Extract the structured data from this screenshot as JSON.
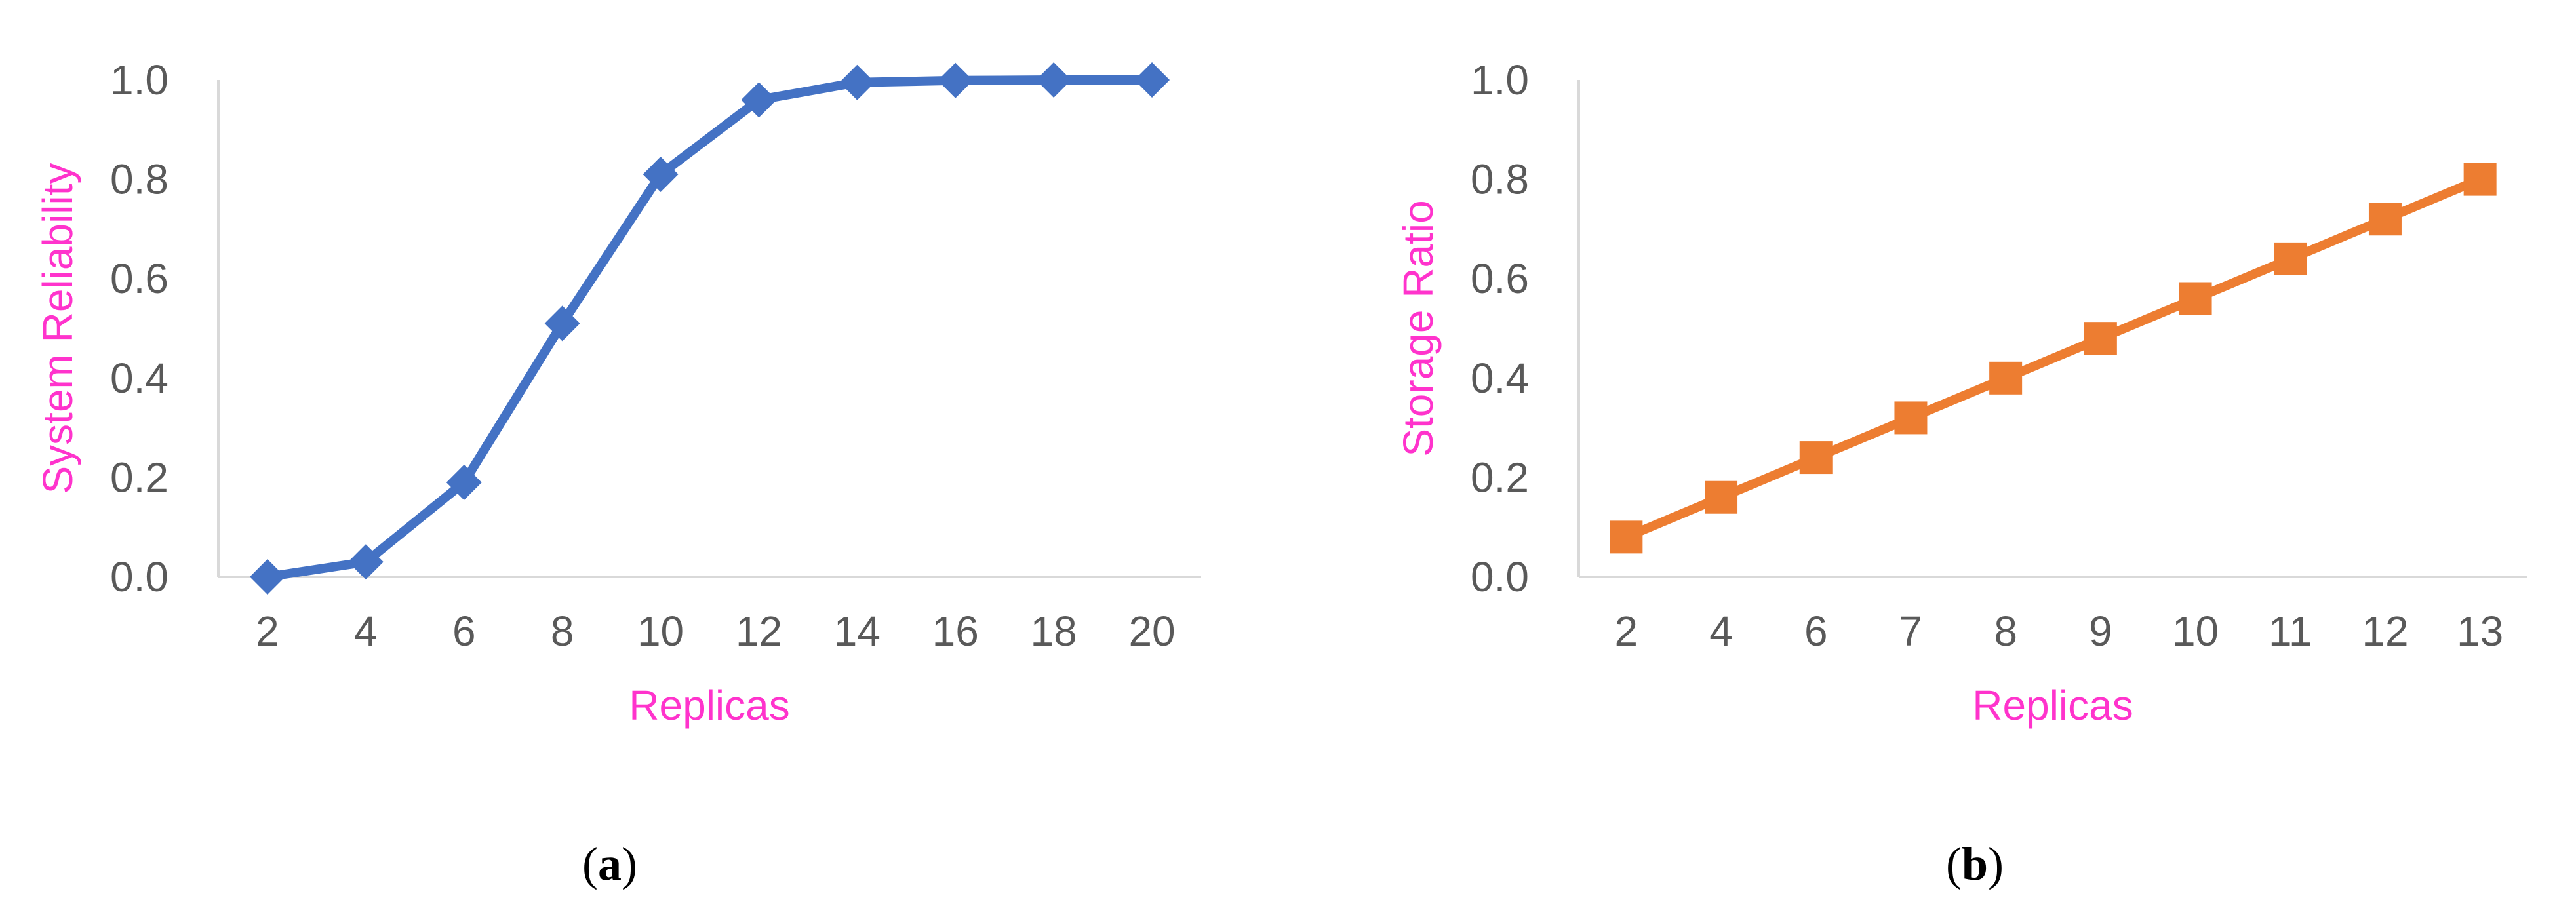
{
  "colors": {
    "axis_title": "#ff33cc",
    "axis_line": "#d9d9d9",
    "tick_text": "#595959",
    "panel_a_series": "#4472c4",
    "panel_b_series": "#ed7d31"
  },
  "chart_data": [
    {
      "type": "line",
      "panel_label": "a",
      "title": "",
      "xlabel": "Replicas",
      "ylabel": "System Reliability",
      "categories": [
        "2",
        "4",
        "6",
        "8",
        "10",
        "12",
        "14",
        "16",
        "18",
        "20"
      ],
      "series": [
        {
          "marker": "diamond",
          "values": [
            0.0,
            0.03,
            0.19,
            0.51,
            0.81,
            0.96,
            0.995,
            0.999,
            1.0,
            1.0
          ]
        }
      ],
      "ylim": [
        0,
        1
      ],
      "yticks": [
        "0.0",
        "0.2",
        "0.4",
        "0.6",
        "0.8",
        "1.0"
      ],
      "grid": false,
      "legend": "none"
    },
    {
      "type": "line",
      "panel_label": "b",
      "title": "",
      "xlabel": "Replicas",
      "ylabel": "Storage Ratio",
      "categories": [
        "2",
        "4",
        "6",
        "7",
        "8",
        "9",
        "10",
        "11",
        "12",
        "13"
      ],
      "series": [
        {
          "marker": "square",
          "values": [
            0.08,
            0.16,
            0.24,
            0.32,
            0.4,
            0.48,
            0.56,
            0.64,
            0.72,
            0.8
          ]
        }
      ],
      "ylim": [
        0,
        1
      ],
      "yticks": [
        "0.0",
        "0.2",
        "0.4",
        "0.6",
        "0.8",
        "1.0"
      ],
      "grid": false,
      "legend": "none"
    }
  ]
}
